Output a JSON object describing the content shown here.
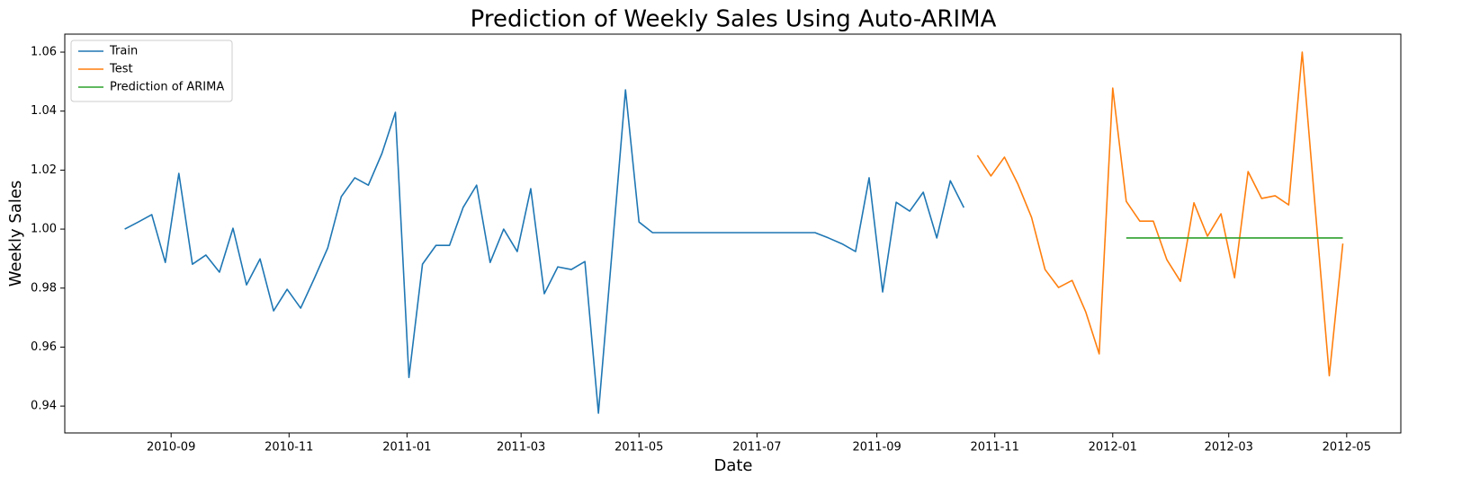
{
  "chart_data": {
    "type": "line",
    "title": "Prediction of Weekly Sales Using Auto-ARIMA",
    "x_label": "Date",
    "y_label": "Weekly Sales",
    "xlim": [
      "2010-07-08",
      "2012-05-29"
    ],
    "xticks": [
      {
        "value": "2010-09-01",
        "label": "2010-09"
      },
      {
        "value": "2010-11-01",
        "label": "2010-11"
      },
      {
        "value": "2011-01-01",
        "label": "2011-01"
      },
      {
        "value": "2011-03-01",
        "label": "2011-03"
      },
      {
        "value": "2011-05-01",
        "label": "2011-05"
      },
      {
        "value": "2011-07-01",
        "label": "2011-07"
      },
      {
        "value": "2011-09-01",
        "label": "2011-09"
      },
      {
        "value": "2011-11-01",
        "label": "2011-11"
      },
      {
        "value": "2012-01-01",
        "label": "2012-01"
      },
      {
        "value": "2012-03-01",
        "label": "2012-03"
      },
      {
        "value": "2012-05-01",
        "label": "2012-05"
      }
    ],
    "ylim": [
      0.9309,
      1.0661
    ],
    "yticks": [
      0.94,
      0.96,
      0.98,
      {
        "value": 1,
        "label": "1.00"
      },
      1.02,
      1.04,
      1.06
    ],
    "grid": false,
    "legend": "upper-left",
    "series": [
      {
        "name": "Train",
        "color": "#1f77b4",
        "x": [
          "2010-08-08",
          "2010-08-15",
          "2010-08-22",
          "2010-08-29",
          "2010-09-05",
          "2010-09-12",
          "2010-09-19",
          "2010-09-26",
          "2010-10-03",
          "2010-10-10",
          "2010-10-17",
          "2010-10-24",
          "2010-10-31",
          "2010-11-07",
          "2010-11-14",
          "2010-11-21",
          "2010-11-28",
          "2010-12-05",
          "2010-12-12",
          "2010-12-19",
          "2010-12-26",
          "2011-01-02",
          "2011-01-09",
          "2011-01-16",
          "2011-01-23",
          "2011-01-30",
          "2011-02-06",
          "2011-02-13",
          "2011-02-20",
          "2011-02-27",
          "2011-03-06",
          "2011-03-13",
          "2011-03-20",
          "2011-03-27",
          "2011-04-03",
          "2011-04-10",
          "2011-04-17",
          "2011-04-24",
          "2011-05-01",
          "2011-05-08",
          "2011-05-15",
          "2011-05-22",
          "2011-05-29",
          "2011-06-05",
          "2011-06-12",
          "2011-06-19",
          "2011-06-26",
          "2011-07-03",
          "2011-07-10",
          "2011-07-17",
          "2011-07-24",
          "2011-07-31",
          "2011-08-07",
          "2011-08-14",
          "2011-08-21",
          "2011-08-28",
          "2011-09-04",
          "2011-09-11",
          "2011-09-18",
          "2011-09-25",
          "2011-10-02",
          "2011-10-09",
          "2011-10-16"
        ],
        "values": [
          1.0,
          1.0024,
          1.0049,
          0.9887,
          1.0189,
          0.9881,
          0.9912,
          0.9854,
          1.0003,
          0.9811,
          0.9899,
          0.9723,
          0.9796,
          0.9732,
          0.9832,
          0.9936,
          1.011,
          1.0174,
          1.0149,
          1.0256,
          1.0396,
          0.9497,
          0.9881,
          0.9945,
          0.9945,
          1.0073,
          1.0149,
          0.9887,
          1.0,
          0.9924,
          1.0137,
          0.9781,
          0.9872,
          0.9863,
          0.989,
          0.9376,
          0.992,
          1.0472,
          1.0024,
          0.9988,
          0.9988,
          0.9988,
          0.9988,
          0.9988,
          0.9988,
          0.9988,
          0.9988,
          0.9988,
          0.9988,
          0.9988,
          0.9988,
          0.9988,
          0.997,
          0.995,
          0.9924,
          1.0174,
          0.9787,
          1.0091,
          1.0061,
          1.0125,
          0.997,
          1.0164,
          1.0073
        ]
      },
      {
        "name": "Test",
        "color": "#ff7f0e",
        "x": [
          "2011-10-23",
          "2011-10-30",
          "2011-11-06",
          "2011-11-13",
          "2011-11-20",
          "2011-11-27",
          "2011-12-04",
          "2011-12-11",
          "2011-12-18",
          "2011-12-25",
          "2012-01-01",
          "2012-01-08",
          "2012-01-15",
          "2012-01-22",
          "2012-01-29",
          "2012-02-05",
          "2012-02-12",
          "2012-02-19",
          "2012-02-26",
          "2012-03-04",
          "2012-03-11",
          "2012-03-18",
          "2012-03-25",
          "2012-04-01",
          "2012-04-08",
          "2012-04-15",
          "2012-04-22",
          "2012-04-29"
        ],
        "values": [
          1.025,
          1.018,
          1.0244,
          1.0152,
          1.004,
          0.9863,
          0.9802,
          0.9826,
          0.972,
          0.9577,
          1.0478,
          1.0094,
          1.0027,
          1.0027,
          0.9896,
          0.9823,
          1.0089,
          0.9976,
          1.0052,
          0.9835,
          1.0195,
          1.0104,
          1.0113,
          1.0082,
          1.06,
          1.005,
          0.9503,
          0.9951
        ]
      },
      {
        "name": "Prediction of ARIMA",
        "color": "#2ca02c",
        "x": [
          "2012-01-08",
          "2012-01-15",
          "2012-01-22",
          "2012-01-29",
          "2012-02-05",
          "2012-02-12",
          "2012-02-19",
          "2012-02-26",
          "2012-03-04",
          "2012-03-11",
          "2012-03-18",
          "2012-03-25",
          "2012-04-01",
          "2012-04-08",
          "2012-04-15",
          "2012-04-22",
          "2012-04-29"
        ],
        "values": [
          0.997,
          0.997,
          0.997,
          0.997,
          0.997,
          0.997,
          0.997,
          0.997,
          0.997,
          0.997,
          0.997,
          0.997,
          0.997,
          0.997,
          0.997,
          0.997,
          0.997
        ]
      }
    ]
  }
}
